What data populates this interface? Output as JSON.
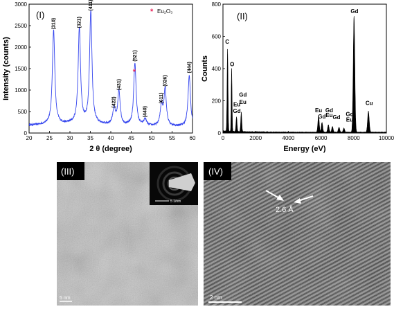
{
  "xrd": {
    "panel_label": "(I)",
    "ylabel": "Intensity (counts)",
    "xlabel": "2 θ (degree)",
    "legend": "Eu₂O₃",
    "legend_color": "#e8245a",
    "line_color": "#3344ee",
    "xlim": [
      20,
      60
    ],
    "ylim": [
      0,
      3000
    ],
    "xticks": [
      20,
      25,
      30,
      35,
      40,
      45,
      50,
      55,
      60
    ],
    "yticks": [
      0,
      500,
      1000,
      1500,
      2000,
      2500,
      3000
    ],
    "peaks": [
      {
        "label": "(310)",
        "x": 26.0,
        "y": 2350,
        "w": 0.35
      },
      {
        "label": "(321)",
        "x": 32.3,
        "y": 2380,
        "w": 0.35
      },
      {
        "label": "(411)",
        "x": 35.1,
        "y": 2780,
        "w": 0.35
      },
      {
        "label": "(422)",
        "x": 40.8,
        "y": 520,
        "w": 0.4
      },
      {
        "label": "(431)",
        "x": 42.0,
        "y": 930,
        "w": 0.35
      },
      {
        "label": "(521)",
        "x": 45.9,
        "y": 1600,
        "w": 0.35
      },
      {
        "label": "(440)",
        "x": 48.4,
        "y": 300,
        "w": 0.4
      },
      {
        "label": "(611)",
        "x": 52.4,
        "y": 620,
        "w": 0.35
      },
      {
        "label": "(026)",
        "x": 53.3,
        "y": 1020,
        "w": 0.35
      },
      {
        "label": "(444)",
        "x": 59.2,
        "y": 1330,
        "w": 0.35
      }
    ],
    "star_peak_x": 45.9
  },
  "eds": {
    "panel_label": "(II)",
    "ylabel": "Counts",
    "xlabel": "Energy (eV)",
    "xlim": [
      0,
      10000
    ],
    "ylim": [
      0,
      800
    ],
    "xticks": [
      0,
      2000,
      4000,
      6000,
      8000,
      10000
    ],
    "yticks": [
      0,
      200,
      400,
      600,
      800
    ],
    "peaks": [
      {
        "x": 280,
        "y": 510,
        "w": 40
      },
      {
        "x": 530,
        "y": 390,
        "w": 35
      },
      {
        "x": 830,
        "y": 90,
        "w": 45
      },
      {
        "x": 1120,
        "y": 120,
        "w": 45
      },
      {
        "x": 5850,
        "y": 100,
        "w": 60
      },
      {
        "x": 6060,
        "y": 60,
        "w": 60
      },
      {
        "x": 6450,
        "y": 45,
        "w": 60
      },
      {
        "x": 6700,
        "y": 35,
        "w": 60
      },
      {
        "x": 7100,
        "y": 30,
        "w": 60
      },
      {
        "x": 7400,
        "y": 25,
        "w": 60
      },
      {
        "x": 8020,
        "y": 720,
        "w": 70
      },
      {
        "x": 8900,
        "y": 130,
        "w": 70
      }
    ],
    "labels": [
      {
        "text": "C",
        "x": 260,
        "y": 555
      },
      {
        "text": "O",
        "x": 560,
        "y": 415
      },
      {
        "text": "Gd",
        "x": 1220,
        "y": 225
      },
      {
        "text": "Eu",
        "x": 850,
        "y": 165
      },
      {
        "text": "Eu",
        "x": 1220,
        "y": 180
      },
      {
        "text": "Gd",
        "x": 850,
        "y": 125
      },
      {
        "text": "Eu",
        "x": 5850,
        "y": 130
      },
      {
        "text": "Gd",
        "x": 6050,
        "y": 90
      },
      {
        "text": "Gd",
        "x": 6500,
        "y": 130
      },
      {
        "text": "Eu",
        "x": 6500,
        "y": 100
      },
      {
        "text": "Gd",
        "x": 6950,
        "y": 85
      },
      {
        "text": "Gd",
        "x": 7750,
        "y": 105
      },
      {
        "text": "Eu",
        "x": 7750,
        "y": 70
      },
      {
        "text": "Gd",
        "x": 8050,
        "y": 745
      },
      {
        "text": "Cu",
        "x": 8950,
        "y": 175
      }
    ]
  },
  "tem3": {
    "panel_label": "(III)",
    "scale_label": "5 nm",
    "inset_scale_label": "5 1/nm"
  },
  "tem4": {
    "panel_label": "(IV)",
    "scale_label": "2 nm",
    "spacing_label": "2.6 Å"
  }
}
